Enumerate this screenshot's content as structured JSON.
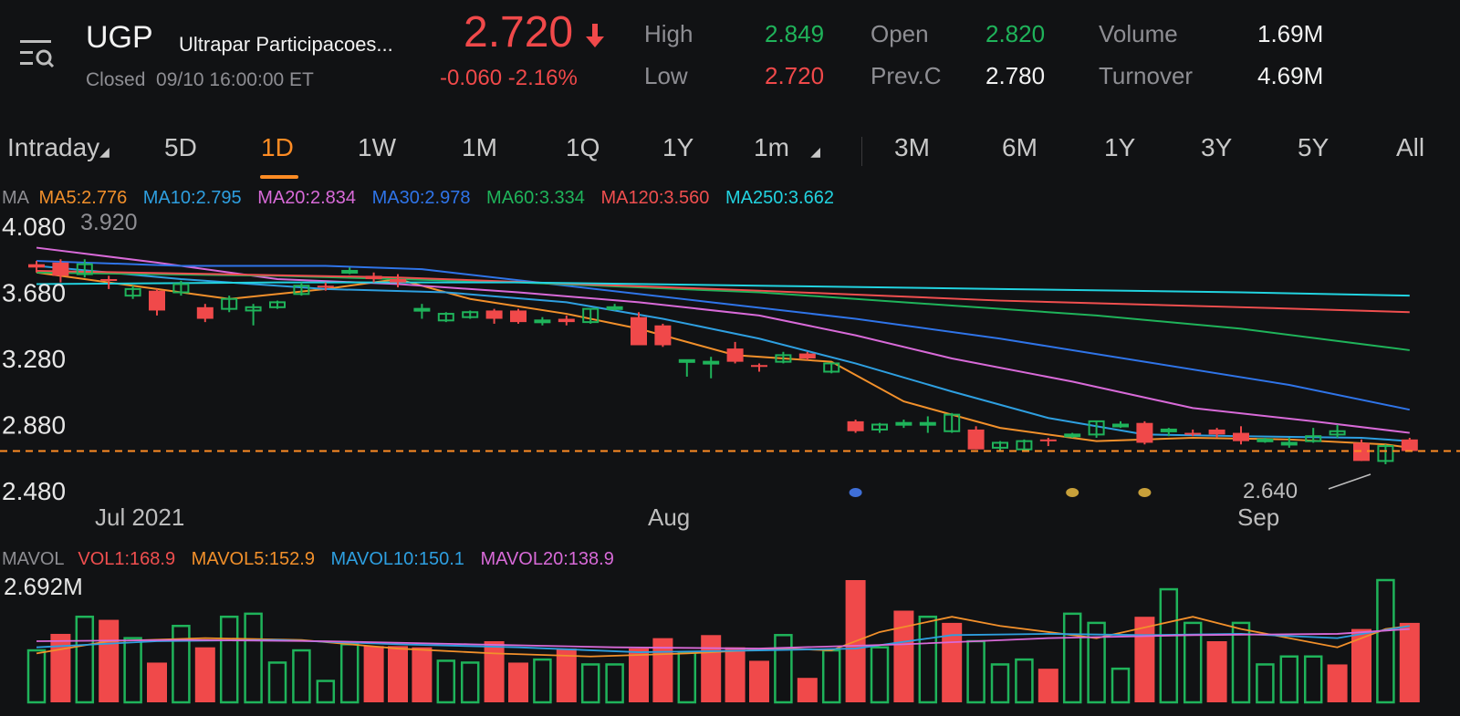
{
  "header": {
    "symbol": "UGP",
    "company": "Ultrapar Participacoes...",
    "status": "Closed",
    "datetime": "09/10 16:00:00 ET",
    "price": "2.720",
    "change": "-0.060",
    "change_pct": "-2.16%",
    "stats": {
      "high_label": "High",
      "high": "2.849",
      "low_label": "Low",
      "low": "2.720",
      "open_label": "Open",
      "open": "2.820",
      "prevc_label": "Prev.C",
      "prevc": "2.780",
      "volume_label": "Volume",
      "volume": "1.69M",
      "turnover_label": "Turnover",
      "turnover": "4.69M"
    }
  },
  "tabs": {
    "intraday": "Intraday",
    "d5": "5D",
    "d1": "1D",
    "w1": "1W",
    "m1": "1M",
    "q1": "1Q",
    "y1": "1Y",
    "min1": "1m",
    "m3": "3M",
    "m6": "6M",
    "y1b": "1Y",
    "y3": "3Y",
    "y5": "5Y",
    "all": "All",
    "active": "1D"
  },
  "ma_row": {
    "label": "MA",
    "items": [
      {
        "text": "MA5:2.776",
        "color": "#f2902b"
      },
      {
        "text": "MA10:2.795",
        "color": "#2e9fe0"
      },
      {
        "text": "MA20:2.834",
        "color": "#d86ad8"
      },
      {
        "text": "MA30:2.978",
        "color": "#2f74e8"
      },
      {
        "text": "MA60:3.334",
        "color": "#1fb35a"
      },
      {
        "text": "MA120:3.560",
        "color": "#f04f4f"
      },
      {
        "text": "MA250:3.662",
        "color": "#22d3e0"
      }
    ]
  },
  "vol_row": {
    "label": "MAVOL",
    "items": [
      {
        "text": "VOL1:168.9",
        "color": "#f04f4f"
      },
      {
        "text": "MAVOL5:152.9",
        "color": "#f2902b"
      },
      {
        "text": "MAVOL10:150.1",
        "color": "#2e9fe0"
      },
      {
        "text": "MAVOL20:138.9",
        "color": "#d86ad8"
      }
    ]
  },
  "chart_data": {
    "type": "candlestick",
    "y_ticks": [
      "4.080",
      "3.680",
      "3.280",
      "2.880",
      "2.480"
    ],
    "ylim": [
      2.48,
      4.08
    ],
    "x_labels": [
      "Jul 2021",
      "Aug",
      "Sep"
    ],
    "max_label": "3.920",
    "min_label": "2.640",
    "last_price_line": 2.72,
    "volume_max_label": "2.692M",
    "candles": [
      {
        "o": 3.85,
        "h": 3.87,
        "l": 3.8,
        "c": 3.83
      },
      {
        "o": 3.86,
        "h": 3.88,
        "l": 3.74,
        "c": 3.78
      },
      {
        "o": 3.79,
        "h": 3.88,
        "l": 3.77,
        "c": 3.85
      },
      {
        "o": 3.76,
        "h": 3.78,
        "l": 3.7,
        "c": 3.75
      },
      {
        "o": 3.66,
        "h": 3.72,
        "l": 3.64,
        "c": 3.7
      },
      {
        "o": 3.69,
        "h": 3.7,
        "l": 3.54,
        "c": 3.57
      },
      {
        "o": 3.68,
        "h": 3.75,
        "l": 3.66,
        "c": 3.73
      },
      {
        "o": 3.59,
        "h": 3.61,
        "l": 3.5,
        "c": 3.52
      },
      {
        "o": 3.58,
        "h": 3.66,
        "l": 3.56,
        "c": 3.64
      },
      {
        "o": 3.57,
        "h": 3.61,
        "l": 3.48,
        "c": 3.59
      },
      {
        "o": 3.59,
        "h": 3.63,
        "l": 3.58,
        "c": 3.62
      },
      {
        "o": 3.67,
        "h": 3.74,
        "l": 3.66,
        "c": 3.72
      },
      {
        "o": 3.72,
        "h": 3.74,
        "l": 3.69,
        "c": 3.71
      },
      {
        "o": 3.81,
        "h": 3.83,
        "l": 3.79,
        "c": 3.81
      },
      {
        "o": 3.78,
        "h": 3.8,
        "l": 3.74,
        "c": 3.76
      },
      {
        "o": 3.76,
        "h": 3.79,
        "l": 3.71,
        "c": 3.74
      },
      {
        "o": 3.58,
        "h": 3.61,
        "l": 3.52,
        "c": 3.58
      },
      {
        "o": 3.51,
        "h": 3.56,
        "l": 3.5,
        "c": 3.55
      },
      {
        "o": 3.53,
        "h": 3.57,
        "l": 3.52,
        "c": 3.56
      },
      {
        "o": 3.57,
        "h": 3.58,
        "l": 3.49,
        "c": 3.52
      },
      {
        "o": 3.57,
        "h": 3.58,
        "l": 3.49,
        "c": 3.5
      },
      {
        "o": 3.5,
        "h": 3.53,
        "l": 3.48,
        "c": 3.51
      },
      {
        "o": 3.52,
        "h": 3.54,
        "l": 3.48,
        "c": 3.5
      },
      {
        "o": 3.5,
        "h": 3.58,
        "l": 3.49,
        "c": 3.58
      },
      {
        "o": 3.58,
        "h": 3.61,
        "l": 3.57,
        "c": 3.59
      },
      {
        "o": 3.53,
        "h": 3.56,
        "l": 3.36,
        "c": 3.36
      },
      {
        "o": 3.48,
        "h": 3.49,
        "l": 3.35,
        "c": 3.36
      },
      {
        "o": 3.26,
        "h": 3.27,
        "l": 3.17,
        "c": 3.27
      },
      {
        "o": 3.26,
        "h": 3.29,
        "l": 3.16,
        "c": 3.26
      },
      {
        "o": 3.34,
        "h": 3.38,
        "l": 3.25,
        "c": 3.26
      },
      {
        "o": 3.24,
        "h": 3.25,
        "l": 3.2,
        "c": 3.23
      },
      {
        "o": 3.26,
        "h": 3.32,
        "l": 3.25,
        "c": 3.3
      },
      {
        "o": 3.31,
        "h": 3.32,
        "l": 3.27,
        "c": 3.28
      },
      {
        "o": 3.2,
        "h": 3.25,
        "l": 3.19,
        "c": 3.25
      },
      {
        "o": 2.9,
        "h": 2.91,
        "l": 2.83,
        "c": 2.84
      },
      {
        "o": 2.85,
        "h": 2.89,
        "l": 2.83,
        "c": 2.88
      },
      {
        "o": 2.89,
        "h": 2.91,
        "l": 2.86,
        "c": 2.89
      },
      {
        "o": 2.89,
        "h": 2.93,
        "l": 2.83,
        "c": 2.89
      },
      {
        "o": 2.84,
        "h": 2.95,
        "l": 2.83,
        "c": 2.94
      },
      {
        "o": 2.85,
        "h": 2.87,
        "l": 2.73,
        "c": 2.73
      },
      {
        "o": 2.74,
        "h": 2.78,
        "l": 2.72,
        "c": 2.77
      },
      {
        "o": 2.73,
        "h": 2.79,
        "l": 2.72,
        "c": 2.78
      },
      {
        "o": 2.79,
        "h": 2.8,
        "l": 2.75,
        "c": 2.78
      },
      {
        "o": 2.81,
        "h": 2.83,
        "l": 2.8,
        "c": 2.82
      },
      {
        "o": 2.82,
        "h": 2.9,
        "l": 2.8,
        "c": 2.9
      },
      {
        "o": 2.88,
        "h": 2.9,
        "l": 2.86,
        "c": 2.88
      },
      {
        "o": 2.89,
        "h": 2.9,
        "l": 2.76,
        "c": 2.77
      },
      {
        "o": 2.84,
        "h": 2.86,
        "l": 2.81,
        "c": 2.85
      },
      {
        "o": 2.83,
        "h": 2.85,
        "l": 2.81,
        "c": 2.82
      },
      {
        "o": 2.85,
        "h": 2.86,
        "l": 2.8,
        "c": 2.82
      },
      {
        "o": 2.83,
        "h": 2.87,
        "l": 2.76,
        "c": 2.78
      },
      {
        "o": 2.78,
        "h": 2.8,
        "l": 2.77,
        "c": 2.79
      },
      {
        "o": 2.76,
        "h": 2.8,
        "l": 2.74,
        "c": 2.77
      },
      {
        "o": 2.78,
        "h": 2.86,
        "l": 2.77,
        "c": 2.81
      },
      {
        "o": 2.82,
        "h": 2.88,
        "l": 2.8,
        "c": 2.84
      },
      {
        "o": 2.77,
        "h": 2.79,
        "l": 2.66,
        "c": 2.66
      },
      {
        "o": 2.66,
        "h": 2.76,
        "l": 2.64,
        "c": 2.75
      },
      {
        "o": 2.79,
        "h": 2.8,
        "l": 2.72,
        "c": 2.72
      }
    ],
    "ma_series": [
      {
        "color": "#f2902b",
        "points": [
          [
            0,
            3.8
          ],
          [
            4,
            3.72
          ],
          [
            8,
            3.64
          ],
          [
            12,
            3.7
          ],
          [
            15,
            3.76
          ],
          [
            18,
            3.64
          ],
          [
            22,
            3.55
          ],
          [
            25,
            3.46
          ],
          [
            29,
            3.3
          ],
          [
            33,
            3.26
          ],
          [
            36,
            3.02
          ],
          [
            40,
            2.86
          ],
          [
            44,
            2.78
          ],
          [
            48,
            2.8
          ],
          [
            52,
            2.79
          ],
          [
            56,
            2.76
          ],
          [
            57,
            2.74
          ]
        ]
      },
      {
        "color": "#2e9fe0",
        "points": [
          [
            0,
            3.84
          ],
          [
            6,
            3.76
          ],
          [
            12,
            3.7
          ],
          [
            17,
            3.68
          ],
          [
            22,
            3.62
          ],
          [
            26,
            3.52
          ],
          [
            30,
            3.4
          ],
          [
            34,
            3.25
          ],
          [
            38,
            3.08
          ],
          [
            42,
            2.92
          ],
          [
            46,
            2.82
          ],
          [
            50,
            2.81
          ],
          [
            55,
            2.8
          ],
          [
            57,
            2.78
          ]
        ]
      },
      {
        "color": "#d86ad8",
        "points": [
          [
            0,
            3.95
          ],
          [
            5,
            3.86
          ],
          [
            10,
            3.76
          ],
          [
            15,
            3.73
          ],
          [
            20,
            3.68
          ],
          [
            25,
            3.62
          ],
          [
            30,
            3.54
          ],
          [
            34,
            3.42
          ],
          [
            38,
            3.28
          ],
          [
            43,
            3.14
          ],
          [
            48,
            2.98
          ],
          [
            53,
            2.9
          ],
          [
            57,
            2.83
          ]
        ]
      },
      {
        "color": "#2f74e8",
        "points": [
          [
            0,
            3.87
          ],
          [
            6,
            3.84
          ],
          [
            12,
            3.84
          ],
          [
            16,
            3.82
          ],
          [
            22,
            3.72
          ],
          [
            28,
            3.62
          ],
          [
            34,
            3.52
          ],
          [
            40,
            3.4
          ],
          [
            46,
            3.26
          ],
          [
            52,
            3.12
          ],
          [
            57,
            2.97
          ]
        ]
      },
      {
        "color": "#1fb35a",
        "points": [
          [
            0,
            3.8
          ],
          [
            10,
            3.78
          ],
          [
            20,
            3.74
          ],
          [
            30,
            3.68
          ],
          [
            38,
            3.6
          ],
          [
            44,
            3.54
          ],
          [
            50,
            3.46
          ],
          [
            57,
            3.33
          ]
        ]
      },
      {
        "color": "#f04f4f",
        "points": [
          [
            0,
            3.81
          ],
          [
            15,
            3.77
          ],
          [
            30,
            3.69
          ],
          [
            40,
            3.63
          ],
          [
            50,
            3.59
          ],
          [
            57,
            3.56
          ]
        ]
      },
      {
        "color": "#22d3e0",
        "points": [
          [
            0,
            3.73
          ],
          [
            10,
            3.74
          ],
          [
            20,
            3.74
          ],
          [
            30,
            3.72
          ],
          [
            40,
            3.7
          ],
          [
            50,
            3.68
          ],
          [
            57,
            3.66
          ]
        ]
      }
    ],
    "volumes": [
      {
        "v": 0.85,
        "up": true
      },
      {
        "v": 1.12,
        "up": false
      },
      {
        "v": 1.4,
        "up": true
      },
      {
        "v": 1.35,
        "up": false
      },
      {
        "v": 1.05,
        "up": true
      },
      {
        "v": 0.65,
        "up": false
      },
      {
        "v": 1.25,
        "up": true
      },
      {
        "v": 0.9,
        "up": false
      },
      {
        "v": 1.4,
        "up": true
      },
      {
        "v": 1.45,
        "up": true
      },
      {
        "v": 0.65,
        "up": true
      },
      {
        "v": 0.85,
        "up": true
      },
      {
        "v": 0.35,
        "up": true
      },
      {
        "v": 0.95,
        "up": true
      },
      {
        "v": 0.92,
        "up": false
      },
      {
        "v": 0.92,
        "up": false
      },
      {
        "v": 0.9,
        "up": false
      },
      {
        "v": 0.68,
        "up": true
      },
      {
        "v": 0.65,
        "up": true
      },
      {
        "v": 1.0,
        "up": false
      },
      {
        "v": 0.65,
        "up": false
      },
      {
        "v": 0.7,
        "up": true
      },
      {
        "v": 0.88,
        "up": false
      },
      {
        "v": 0.62,
        "up": true
      },
      {
        "v": 0.62,
        "up": true
      },
      {
        "v": 0.88,
        "up": false
      },
      {
        "v": 1.05,
        "up": false
      },
      {
        "v": 0.82,
        "up": true
      },
      {
        "v": 1.1,
        "up": false
      },
      {
        "v": 0.9,
        "up": false
      },
      {
        "v": 0.68,
        "up": false
      },
      {
        "v": 1.1,
        "up": true
      },
      {
        "v": 0.4,
        "up": false
      },
      {
        "v": 0.85,
        "up": true
      },
      {
        "v": 2.0,
        "up": false
      },
      {
        "v": 0.9,
        "up": true
      },
      {
        "v": 1.5,
        "up": false
      },
      {
        "v": 1.4,
        "up": true
      },
      {
        "v": 1.3,
        "up": false
      },
      {
        "v": 1.0,
        "up": true
      },
      {
        "v": 0.62,
        "up": true
      },
      {
        "v": 0.7,
        "up": true
      },
      {
        "v": 0.55,
        "up": false
      },
      {
        "v": 1.45,
        "up": true
      },
      {
        "v": 1.3,
        "up": true
      },
      {
        "v": 0.55,
        "up": true
      },
      {
        "v": 1.4,
        "up": false
      },
      {
        "v": 1.85,
        "up": true
      },
      {
        "v": 1.3,
        "up": true
      },
      {
        "v": 1.0,
        "up": false
      },
      {
        "v": 1.3,
        "up": true
      },
      {
        "v": 0.62,
        "up": true
      },
      {
        "v": 0.75,
        "up": true
      },
      {
        "v": 0.75,
        "up": true
      },
      {
        "v": 0.62,
        "up": false
      },
      {
        "v": 1.2,
        "up": false
      },
      {
        "v": 2.0,
        "up": true
      },
      {
        "v": 1.3,
        "up": false
      }
    ],
    "vol_ma": [
      {
        "color": "#f2902b",
        "points": [
          [
            0,
            0.8
          ],
          [
            3,
            1.0
          ],
          [
            7,
            1.05
          ],
          [
            11,
            1.02
          ],
          [
            15,
            0.88
          ],
          [
            19,
            0.8
          ],
          [
            23,
            0.75
          ],
          [
            27,
            0.8
          ],
          [
            31,
            0.88
          ],
          [
            33,
            0.85
          ],
          [
            35,
            1.15
          ],
          [
            38,
            1.4
          ],
          [
            40,
            1.25
          ],
          [
            44,
            1.05
          ],
          [
            48,
            1.4
          ],
          [
            50,
            1.2
          ],
          [
            54,
            0.9
          ],
          [
            56,
            1.2
          ],
          [
            57,
            1.25
          ]
        ]
      },
      {
        "color": "#2e9fe0",
        "points": [
          [
            0,
            0.9
          ],
          [
            5,
            1.0
          ],
          [
            10,
            1.02
          ],
          [
            15,
            0.95
          ],
          [
            20,
            0.9
          ],
          [
            25,
            0.82
          ],
          [
            30,
            0.85
          ],
          [
            34,
            0.88
          ],
          [
            38,
            1.1
          ],
          [
            42,
            1.12
          ],
          [
            46,
            1.1
          ],
          [
            50,
            1.12
          ],
          [
            54,
            1.05
          ],
          [
            57,
            1.25
          ]
        ]
      },
      {
        "color": "#d86ad8",
        "points": [
          [
            0,
            1.0
          ],
          [
            6,
            1.02
          ],
          [
            12,
            1.0
          ],
          [
            18,
            0.95
          ],
          [
            24,
            0.9
          ],
          [
            30,
            0.88
          ],
          [
            36,
            0.95
          ],
          [
            42,
            1.05
          ],
          [
            48,
            1.1
          ],
          [
            54,
            1.12
          ],
          [
            57,
            1.2
          ]
        ]
      }
    ],
    "event_markers": [
      {
        "index": 34,
        "color": "#3f6fd8"
      },
      {
        "index": 43,
        "color": "#c8a03a"
      },
      {
        "index": 46,
        "color": "#c8a03a"
      }
    ]
  }
}
